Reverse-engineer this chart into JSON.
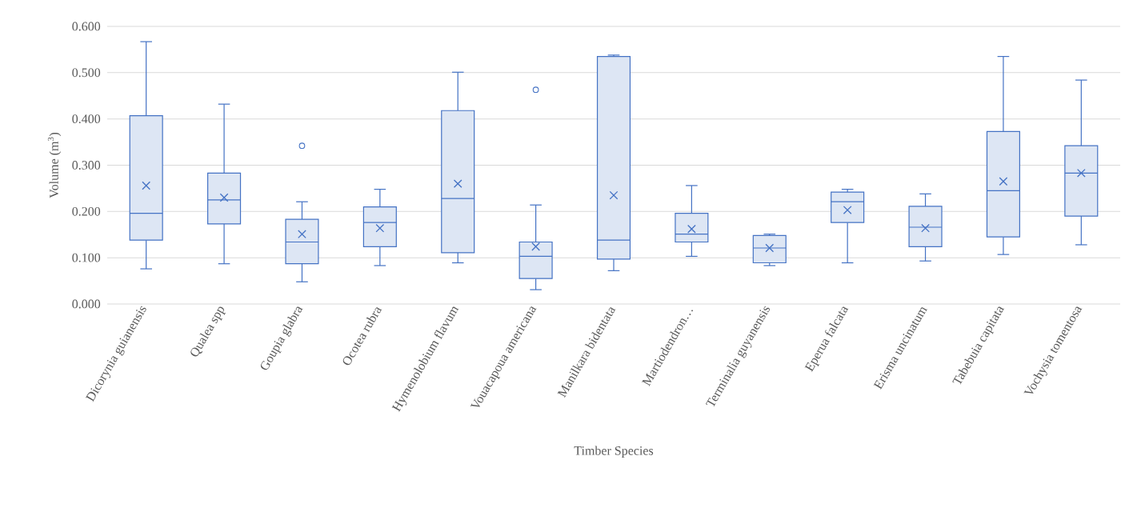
{
  "chart_data": {
    "type": "box",
    "xlabel": "Timber Species",
    "ylabel": "Volume (m$^{3}$)",
    "categories": [
      "Dicorynia guianensis",
      "Qualea spp",
      "Goupia glabra",
      "Ocotea rubra",
      "Hymenolobium flavum",
      "Vouacapoua americana",
      "Manilkara bidentata",
      "Martiodendron…",
      "Terminalia guyanensis",
      "Eperua falcata",
      "Erisma uncinatum",
      "Tabebuia capitata",
      "Vochysia tomentosa"
    ],
    "series": [
      {
        "color": "#4472c4",
        "boxes": [
          {
            "low": 0.076,
            "q1": 0.138,
            "median": 0.196,
            "q3": 0.407,
            "high": 0.567,
            "mean": 0.256
          },
          {
            "low": 0.087,
            "q1": 0.173,
            "median": 0.225,
            "q3": 0.283,
            "high": 0.432,
            "mean": 0.23
          },
          {
            "low": 0.048,
            "q1": 0.087,
            "median": 0.134,
            "q3": 0.183,
            "high": 0.221,
            "mean": 0.151,
            "outliers": [
              0.342
            ]
          },
          {
            "low": 0.083,
            "q1": 0.124,
            "median": 0.176,
            "q3": 0.21,
            "high": 0.248,
            "mean": 0.164
          },
          {
            "low": 0.089,
            "q1": 0.111,
            "median": 0.228,
            "q3": 0.418,
            "high": 0.501,
            "mean": 0.26
          },
          {
            "low": 0.031,
            "q1": 0.055,
            "median": 0.103,
            "q3": 0.134,
            "high": 0.214,
            "mean": 0.124,
            "outliers": [
              0.463
            ]
          },
          {
            "low": 0.072,
            "q1": 0.097,
            "median": 0.138,
            "q3": 0.535,
            "high": 0.538,
            "mean": 0.235
          },
          {
            "low": 0.103,
            "q1": 0.134,
            "median": 0.151,
            "q3": 0.196,
            "high": 0.256,
            "mean": 0.162
          },
          {
            "low": 0.083,
            "q1": 0.089,
            "median": 0.121,
            "q3": 0.148,
            "high": 0.151,
            "mean": 0.121
          },
          {
            "low": 0.089,
            "q1": 0.176,
            "median": 0.221,
            "q3": 0.242,
            "high": 0.248,
            "mean": 0.203
          },
          {
            "low": 0.093,
            "q1": 0.124,
            "median": 0.166,
            "q3": 0.211,
            "high": 0.238,
            "mean": 0.164
          },
          {
            "low": 0.107,
            "q1": 0.145,
            "median": 0.245,
            "q3": 0.373,
            "high": 0.535,
            "mean": 0.265
          },
          {
            "low": 0.128,
            "q1": 0.19,
            "median": 0.283,
            "q3": 0.342,
            "high": 0.484,
            "mean": 0.283
          }
        ]
      }
    ],
    "ylim": [
      0,
      0.6
    ],
    "yticks": [
      {
        "value": 0,
        "label": "0.000"
      },
      {
        "value": 0.1,
        "label": "0.100"
      },
      {
        "value": 0.2,
        "label": "0.200"
      },
      {
        "value": 0.3,
        "label": "0.300"
      },
      {
        "value": 0.4,
        "label": "0.400"
      },
      {
        "value": 0.5,
        "label": "0.500"
      },
      {
        "value": 0.6,
        "label": "0.600"
      }
    ],
    "grid": "y"
  }
}
